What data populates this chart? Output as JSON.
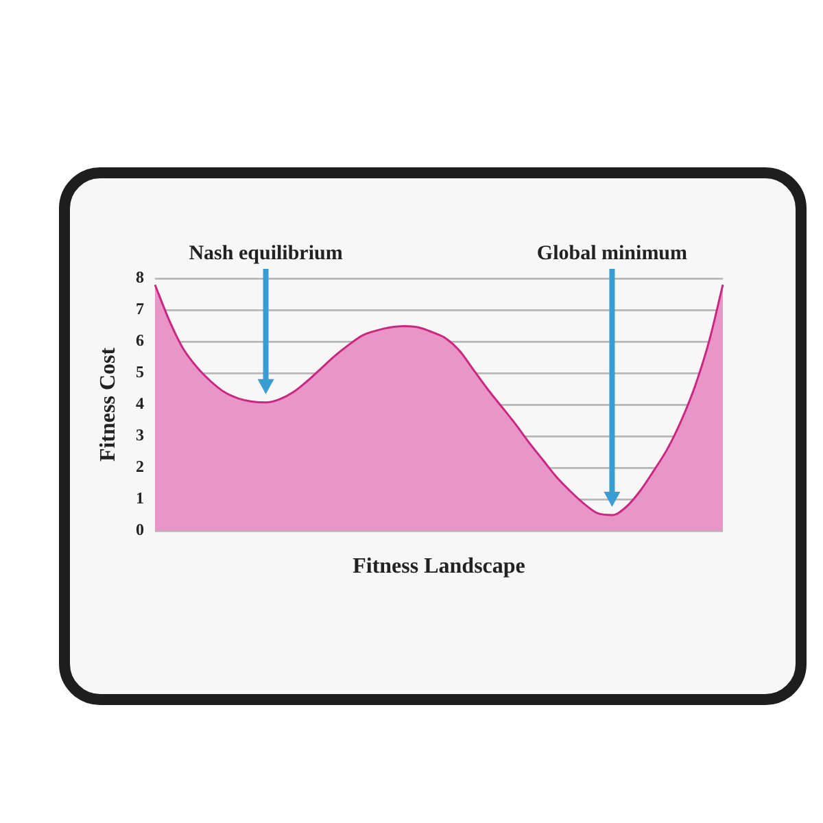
{
  "chart_data": {
    "type": "area",
    "xlabel": "Fitness Landscape",
    "ylabel": "Fitness Cost",
    "categories": [
      null,
      null,
      null,
      null,
      null,
      null,
      null,
      null,
      null,
      null,
      null,
      null,
      null,
      null,
      null,
      null,
      null,
      null,
      null,
      null,
      null,
      null,
      null,
      null,
      null,
      null,
      null,
      null,
      null,
      null,
      null,
      null,
      null,
      null,
      null,
      null,
      null,
      null,
      null,
      null,
      null,
      null
    ],
    "values": [
      7.8,
      6.7,
      5.8,
      5.2,
      4.75,
      4.4,
      4.2,
      4.1,
      4.07,
      4.17,
      4.4,
      4.75,
      5.15,
      5.55,
      5.9,
      6.2,
      6.35,
      6.45,
      6.49,
      6.45,
      6.3,
      6.1,
      5.7,
      5.1,
      4.5,
      3.95,
      3.4,
      2.8,
      2.25,
      1.7,
      1.25,
      0.85,
      0.55,
      0.5,
      0.75,
      1.25,
      1.9,
      2.6,
      3.5,
      4.6,
      6.0,
      7.8
    ],
    "color": "#e896c8",
    "ylim": [
      0,
      8
    ],
    "yticks": [
      0,
      1,
      2,
      3,
      4,
      5,
      6,
      7,
      8
    ],
    "grid": "y",
    "tick_labels": "y",
    "annotations": [
      "Nash equilibrium",
      "Global minimum"
    ]
  }
}
